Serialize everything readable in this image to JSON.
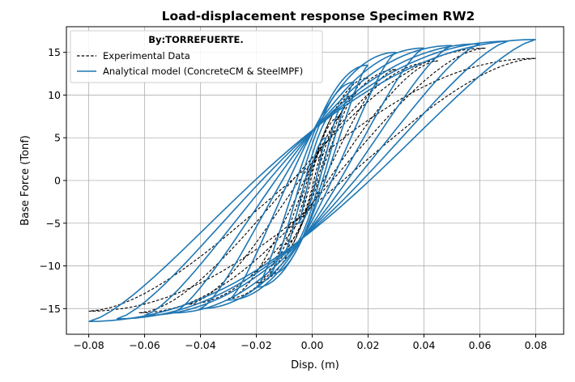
{
  "chart_data": {
    "type": "line",
    "title": "Load-displacement response Specimen RW2",
    "xlabel": "Disp. (m)",
    "ylabel": "Base Force (Tonf)",
    "xlim": [
      -0.088,
      0.09
    ],
    "ylim": [
      -18,
      18
    ],
    "x_ticks": [
      -0.08,
      -0.06,
      -0.04,
      -0.02,
      0.0,
      0.02,
      0.04,
      0.06,
      0.08
    ],
    "x_tick_labels": [
      "−0.08",
      "−0.06",
      "−0.04",
      "−0.02",
      "0.00",
      "0.02",
      "0.04",
      "0.06",
      "0.08"
    ],
    "y_ticks": [
      -15,
      -10,
      -5,
      0,
      5,
      10,
      15
    ],
    "y_tick_labels": [
      "−15",
      "−10",
      "−5",
      "0",
      "5",
      "10",
      "15"
    ],
    "grid": true,
    "legend": {
      "placement": "upper-left",
      "title": "By:TORREFUERTE.",
      "entries": [
        "Experimental Data",
        "Analytical model (ConcreteCM & SteelMPF)"
      ]
    },
    "series": [
      {
        "name": "Experimental Data",
        "style": "dashed",
        "color": "#000000",
        "cycles": [
          {
            "umax": 0.005,
            "fpos": 4.5,
            "fneg": -4.5
          },
          {
            "umax": 0.01,
            "fpos": 7.5,
            "fneg": -7.5
          },
          {
            "umax": 0.015,
            "fpos": 10.0,
            "fneg": -10.0
          },
          {
            "umax": 0.02,
            "fpos": 12.0,
            "fneg": -12.0
          },
          {
            "umax": 0.03,
            "fpos": 13.0,
            "fneg": -13.8
          },
          {
            "umax": 0.045,
            "fpos": 14.0,
            "fneg": -14.5
          },
          {
            "umax": 0.062,
            "fpos": 15.5,
            "fneg": -15.5
          },
          {
            "umax": 0.08,
            "fpos": 14.3,
            "fneg": -15.3
          }
        ]
      },
      {
        "name": "Analytical model (ConcreteCM & SteelMPF)",
        "style": "solid",
        "color": "#1f77b4",
        "cycles": [
          {
            "umax": 0.005,
            "fpos": 5.0,
            "fneg": -5.0
          },
          {
            "umax": 0.01,
            "fpos": 8.5,
            "fneg": -8.5
          },
          {
            "umax": 0.015,
            "fpos": 11.5,
            "fneg": -11.0
          },
          {
            "umax": 0.02,
            "fpos": 13.5,
            "fneg": -12.5
          },
          {
            "umax": 0.03,
            "fpos": 15.0,
            "fneg": -14.0
          },
          {
            "umax": 0.04,
            "fpos": 15.5,
            "fneg": -15.0
          },
          {
            "umax": 0.05,
            "fpos": 15.8,
            "fneg": -15.5
          },
          {
            "umax": 0.06,
            "fpos": 16.0,
            "fneg": -15.8
          },
          {
            "umax": 0.07,
            "fpos": 16.3,
            "fneg": -16.2
          },
          {
            "umax": 0.08,
            "fpos": 16.5,
            "fneg": -16.5
          }
        ]
      }
    ]
  }
}
